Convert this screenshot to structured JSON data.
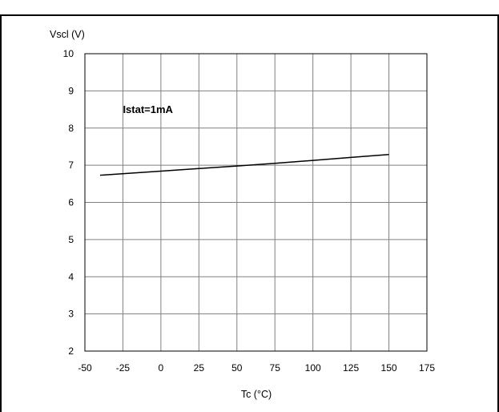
{
  "header": {
    "text": ""
  },
  "chart_data": {
    "type": "line",
    "title": "",
    "xlabel": "Tc (°C)",
    "ylabel": "Vscl (V)",
    "xlim": [
      -50,
      175
    ],
    "ylim": [
      2,
      10
    ],
    "x_ticks": [
      -50,
      -25,
      0,
      25,
      50,
      75,
      100,
      125,
      150,
      175
    ],
    "y_ticks": [
      2,
      3,
      4,
      5,
      6,
      7,
      8,
      9,
      10
    ],
    "grid": true,
    "legend": "none",
    "series": [
      {
        "x": [
          -40,
          0,
          25,
          50,
          75,
          100,
          125,
          150
        ],
        "y": [
          6.73,
          6.84,
          6.91,
          6.98,
          7.05,
          7.13,
          7.21,
          7.29
        ]
      }
    ],
    "annotations": [
      {
        "text": "Istat=1mA",
        "x": -25,
        "y": 8.4
      }
    ],
    "line_color": "#000000",
    "grid_color": "#808080"
  }
}
